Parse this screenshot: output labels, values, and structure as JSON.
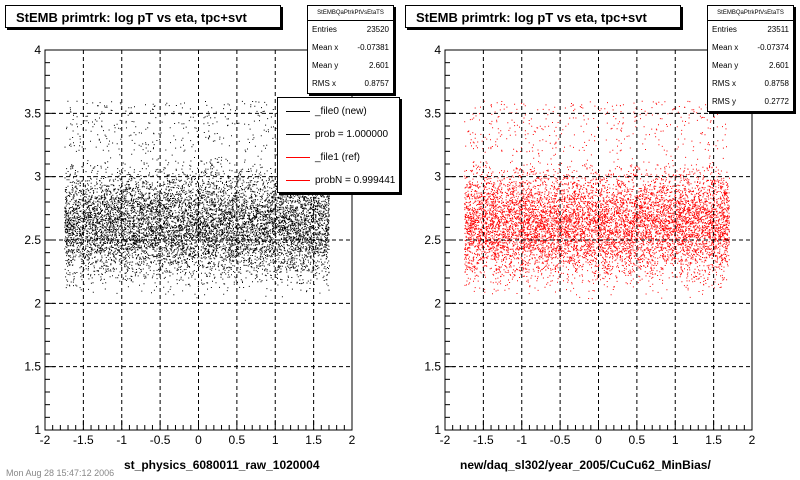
{
  "footer": {
    "text": "Mon Aug 28 15:47:12 2006"
  },
  "chart_data": [
    {
      "type": "scatter",
      "title": "StEMB primtrk: log pT vs eta, tpc+svt",
      "xlabel": "st_physics_6080011_raw_1020004",
      "ylabel": "",
      "xlim": [
        -2,
        2
      ],
      "ylim": [
        1,
        4
      ],
      "xticks": [
        "-2",
        "-1.5",
        "-1",
        "-0.5",
        "0",
        "0.5",
        "1",
        "1.5",
        "2"
      ],
      "yticks": [
        "1",
        "1.5",
        "2",
        "2.5",
        "3",
        "3.5",
        "4"
      ],
      "grid": true,
      "color": "#000000",
      "distribution": {
        "x_range": [
          -1.75,
          1.7
        ],
        "y_range": [
          2.0,
          3.25
        ],
        "x_mean": -0.07381,
        "y_mean": 2.601,
        "x_rms": 0.8757
      },
      "stats": {
        "name": "StEMBQaPtrkPtVsEtaTS",
        "rows": [
          {
            "label": "Entries",
            "value": "23520"
          },
          {
            "label": "Mean x",
            "value": "-0.07381"
          },
          {
            "label": "Mean y",
            "value": "2.601"
          },
          {
            "label": "RMS x",
            "value": "0.8757"
          }
        ]
      },
      "legend": {
        "placement": "right",
        "entries": [
          {
            "label": "_file0 (new)",
            "color": "#000000"
          },
          {
            "label": "prob = 1.000000",
            "color": "#000000"
          },
          {
            "label": "_file1 (ref)",
            "color": "#ff0000"
          },
          {
            "label": "probN = 0.999441",
            "color": "#ff0000"
          }
        ]
      }
    },
    {
      "type": "scatter",
      "title": "StEMB primtrk: log pT vs eta, tpc+svt",
      "xlabel": "new/daq_sl302/year_2005/CuCu62_MinBias/",
      "ylabel": "",
      "xlim": [
        -2,
        2
      ],
      "ylim": [
        1,
        4
      ],
      "xticks": [
        "-2",
        "-1.5",
        "-1",
        "-0.5",
        "0",
        "0.5",
        "1",
        "1.5",
        "2"
      ],
      "yticks": [
        "1",
        "1.5",
        "2",
        "2.5",
        "3",
        "3.5",
        "4"
      ],
      "grid": true,
      "color": "#ff0000",
      "distribution": {
        "x_range": [
          -1.75,
          1.7
        ],
        "y_range": [
          2.0,
          3.25
        ],
        "x_mean": -0.07374,
        "y_mean": 2.601,
        "x_rms": 0.8758
      },
      "stats": {
        "name": "StEMBQaPtrkPtVsEtaTS",
        "rows": [
          {
            "label": "Entries",
            "value": "23511"
          },
          {
            "label": "Mean x",
            "value": "-0.07374"
          },
          {
            "label": "Mean y",
            "value": "2.601"
          },
          {
            "label": "RMS x",
            "value": "0.8758"
          },
          {
            "label": "RMS y",
            "value": "0.2772"
          }
        ]
      }
    }
  ]
}
